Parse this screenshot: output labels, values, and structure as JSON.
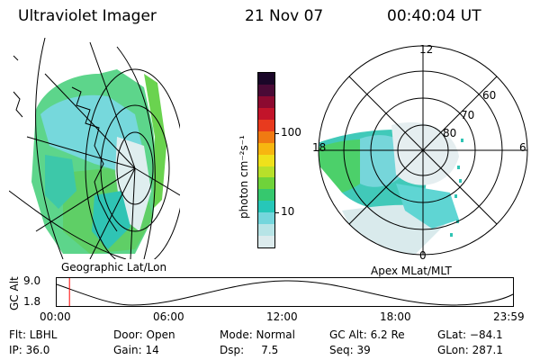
{
  "header": {
    "instrument": "Ultraviolet Imager",
    "date": "21 Nov 07",
    "time": "00:40:04 UT"
  },
  "geo_panel": {
    "caption": "Geographic Lat/Lon"
  },
  "polar_panel": {
    "caption": "Apex MLat/MLT",
    "mlt_labels": {
      "top": "12",
      "right": "6",
      "bottom": "0",
      "left": "18"
    },
    "lat_labels": [
      "60",
      "70",
      "80"
    ]
  },
  "colorbar": {
    "unit_label": "photon cm⁻²s⁻¹",
    "ticks": [
      "100",
      "10"
    ],
    "colors": [
      "#1a0628",
      "#4a0a36",
      "#8c0a30",
      "#c2142a",
      "#e83a1e",
      "#f07a12",
      "#f7b610",
      "#efe11b",
      "#b8e02a",
      "#6fd33a",
      "#36c86e",
      "#27c7b8",
      "#74d6dc",
      "#b7e4e6",
      "#dcebed"
    ]
  },
  "timeline": {
    "y_label": "GC Alt",
    "y_ticks": [
      "9.0",
      "1.8"
    ],
    "x_ticks": [
      "00:00",
      "06:00",
      "12:00",
      "18:00",
      "23:59"
    ],
    "marker_fraction": 0.028,
    "marker_color": "#ff0000"
  },
  "status": {
    "flt": "Flt: LBHL",
    "door": "Door: Open",
    "mode": "Mode: Normal",
    "gc_alt": "GC Alt: 6.2 Re",
    "glat": "GLat: −84.1",
    "ip": "IP: 36.0",
    "gain": "Gain: 14",
    "dsp": "Dsp:     7.5",
    "seq": "Seq: 39",
    "glon": "GLon: 287.1"
  }
}
